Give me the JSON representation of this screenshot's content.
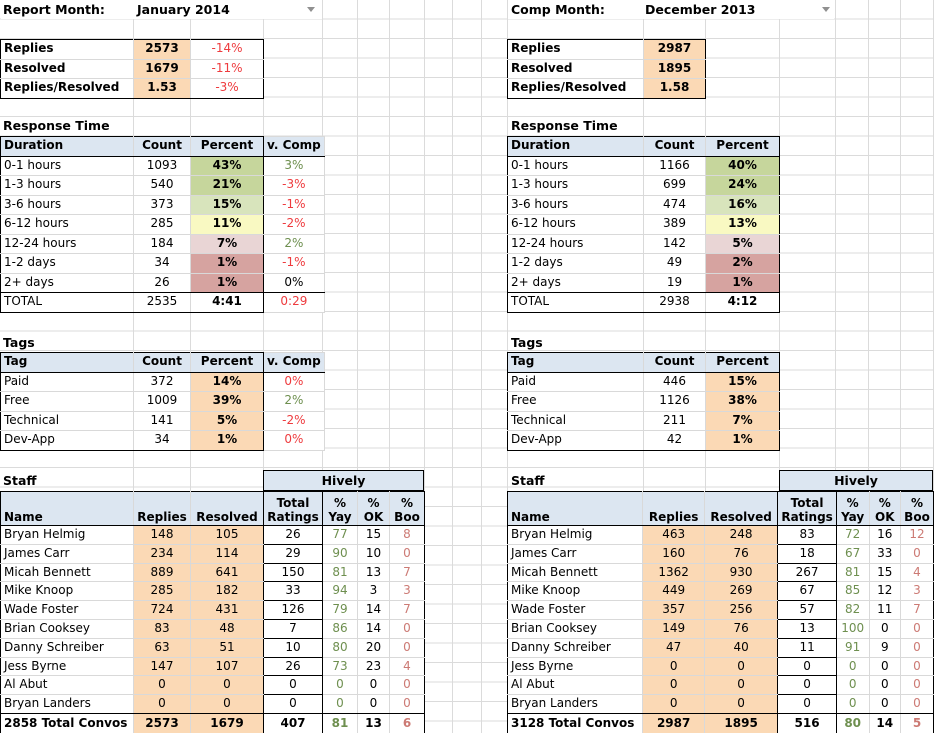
{
  "colors": {
    "header_fill": "#DCE6F1",
    "orange_fill": "#FBD9B5",
    "green_fill": "#C6D69C",
    "green_fill_light": "#D8E4BC",
    "yellow_fill": "#F9F9C2",
    "pink_fill_light": "#E9D5D5",
    "pink_fill_dark": "#D6A3A0",
    "positive_text": "#6E8F4F",
    "negative_text": "#EE3B3E",
    "boo_text": "#CC7A74"
  },
  "left": {
    "month": {
      "label": "Report Month:",
      "value": "January 2014"
    },
    "summary": [
      {
        "label": "Replies",
        "value": "2573",
        "comp": "-14%"
      },
      {
        "label": "Resolved",
        "value": "1679",
        "comp": "-11%"
      },
      {
        "label": "Replies/Resolved",
        "value": "1.53",
        "comp": "-3%"
      }
    ],
    "response": {
      "title": "Response Time",
      "headers": [
        "Duration",
        "Count",
        "Percent",
        "v. Comp"
      ],
      "rows": [
        {
          "label": "0-1 hours",
          "count": "1093",
          "percent": "43%",
          "fill": "g1",
          "comp": "3%",
          "comp_cls": "pos"
        },
        {
          "label": "1-3 hours",
          "count": "540",
          "percent": "21%",
          "fill": "g1",
          "comp": "-3%",
          "comp_cls": "neg"
        },
        {
          "label": "3-6 hours",
          "count": "373",
          "percent": "15%",
          "fill": "g2",
          "comp": "-1%",
          "comp_cls": "neg"
        },
        {
          "label": "6-12 hours",
          "count": "285",
          "percent": "11%",
          "fill": "y",
          "comp": "-2%",
          "comp_cls": "neg"
        },
        {
          "label": "12-24 hours",
          "count": "184",
          "percent": "7%",
          "fill": "p1",
          "comp": "2%",
          "comp_cls": "pos"
        },
        {
          "label": "1-2 days",
          "count": "34",
          "percent": "1%",
          "fill": "p2",
          "comp": "-1%",
          "comp_cls": "neg"
        },
        {
          "label": "2+ days",
          "count": "26",
          "percent": "1%",
          "fill": "p2",
          "comp": "0%",
          "comp_cls": "zero"
        }
      ],
      "total": {
        "label": "TOTAL",
        "count": "2535",
        "percent": "4:41",
        "comp": "0:29"
      }
    },
    "tags": {
      "title": "Tags",
      "headers": [
        "Tag",
        "Count",
        "Percent",
        "v. Comp"
      ],
      "rows": [
        {
          "label": "Paid",
          "count": "372",
          "percent": "14%",
          "fill": "or",
          "comp": "0%",
          "comp_cls": "neg"
        },
        {
          "label": "Free",
          "count": "1009",
          "percent": "39%",
          "fill": "or",
          "comp": "2%",
          "comp_cls": "pos"
        },
        {
          "label": "Technical",
          "count": "141",
          "percent": "5%",
          "fill": "or",
          "comp": "-2%",
          "comp_cls": "neg"
        },
        {
          "label": "Dev-App",
          "count": "34",
          "percent": "1%",
          "fill": "or",
          "comp": "0%",
          "comp_cls": "neg"
        }
      ]
    },
    "staff": {
      "title": "Staff",
      "group_header": "Hively",
      "headers": [
        "Name",
        "Replies",
        "Resolved",
        "Total Ratings",
        "% Yay",
        "% OK",
        "% Boo"
      ],
      "rows": [
        {
          "name": "Bryan Helmig",
          "replies": "148",
          "resolved": "105",
          "ratings": "26",
          "yay": "77",
          "ok": "15",
          "boo": "8"
        },
        {
          "name": "James Carr",
          "replies": "234",
          "resolved": "114",
          "ratings": "29",
          "yay": "90",
          "ok": "10",
          "boo": "0"
        },
        {
          "name": "Micah Bennett",
          "replies": "889",
          "resolved": "641",
          "ratings": "150",
          "yay": "81",
          "ok": "13",
          "boo": "7"
        },
        {
          "name": "Mike Knoop",
          "replies": "285",
          "resolved": "182",
          "ratings": "33",
          "yay": "94",
          "ok": "3",
          "boo": "3"
        },
        {
          "name": "Wade Foster",
          "replies": "724",
          "resolved": "431",
          "ratings": "126",
          "yay": "79",
          "ok": "14",
          "boo": "7"
        },
        {
          "name": "Brian Cooksey",
          "replies": "83",
          "resolved": "48",
          "ratings": "7",
          "yay": "86",
          "ok": "14",
          "boo": "0"
        },
        {
          "name": "Danny Schreiber",
          "replies": "63",
          "resolved": "51",
          "ratings": "10",
          "yay": "80",
          "ok": "20",
          "boo": "0"
        },
        {
          "name": "Jess Byrne",
          "replies": "147",
          "resolved": "107",
          "ratings": "26",
          "yay": "73",
          "ok": "23",
          "boo": "4"
        },
        {
          "name": "Al Abut",
          "replies": "0",
          "resolved": "0",
          "ratings": "0",
          "yay": "0",
          "ok": "0",
          "boo": "0"
        },
        {
          "name": "Bryan Landers",
          "replies": "0",
          "resolved": "0",
          "ratings": "0",
          "yay": "0",
          "ok": "0",
          "boo": "0"
        }
      ],
      "total": {
        "name": "2858 Total Convos",
        "replies": "2573",
        "resolved": "1679",
        "ratings": "407",
        "yay": "81",
        "ok": "13",
        "boo": "6"
      }
    }
  },
  "right": {
    "month": {
      "label": "Comp Month:",
      "value": "December 2013"
    },
    "summary": [
      {
        "label": "Replies",
        "value": "2987"
      },
      {
        "label": "Resolved",
        "value": "1895"
      },
      {
        "label": "Replies/Resolved",
        "value": "1.58"
      }
    ],
    "response": {
      "title": "Response Time",
      "headers": [
        "Duration",
        "Count",
        "Percent"
      ],
      "rows": [
        {
          "label": "0-1 hours",
          "count": "1166",
          "percent": "40%",
          "fill": "g1"
        },
        {
          "label": "1-3 hours",
          "count": "699",
          "percent": "24%",
          "fill": "g1"
        },
        {
          "label": "3-6 hours",
          "count": "474",
          "percent": "16%",
          "fill": "g2"
        },
        {
          "label": "6-12 hours",
          "count": "389",
          "percent": "13%",
          "fill": "y"
        },
        {
          "label": "12-24 hours",
          "count": "142",
          "percent": "5%",
          "fill": "p1"
        },
        {
          "label": "1-2 days",
          "count": "49",
          "percent": "2%",
          "fill": "p2"
        },
        {
          "label": "2+ days",
          "count": "19",
          "percent": "1%",
          "fill": "p2"
        }
      ],
      "total": {
        "label": "TOTAL",
        "count": "2938",
        "percent": "4:12"
      }
    },
    "tags": {
      "title": "Tags",
      "headers": [
        "Tag",
        "Count",
        "Percent"
      ],
      "rows": [
        {
          "label": "Paid",
          "count": "446",
          "percent": "15%",
          "fill": "or"
        },
        {
          "label": "Free",
          "count": "1126",
          "percent": "38%",
          "fill": "or"
        },
        {
          "label": "Technical",
          "count": "211",
          "percent": "7%",
          "fill": "or"
        },
        {
          "label": "Dev-App",
          "count": "42",
          "percent": "1%",
          "fill": "or"
        }
      ]
    },
    "staff": {
      "title": "Staff",
      "group_header": "Hively",
      "headers": [
        "Name",
        "Replies",
        "Resolved",
        "Total Ratings",
        "% Yay",
        "% OK",
        "% Boo"
      ],
      "rows": [
        {
          "name": "Bryan Helmig",
          "replies": "463",
          "resolved": "248",
          "ratings": "83",
          "yay": "72",
          "ok": "16",
          "boo": "12"
        },
        {
          "name": "James Carr",
          "replies": "160",
          "resolved": "76",
          "ratings": "18",
          "yay": "67",
          "ok": "33",
          "boo": "0"
        },
        {
          "name": "Micah Bennett",
          "replies": "1362",
          "resolved": "930",
          "ratings": "267",
          "yay": "81",
          "ok": "15",
          "boo": "4"
        },
        {
          "name": "Mike Knoop",
          "replies": "449",
          "resolved": "269",
          "ratings": "67",
          "yay": "85",
          "ok": "12",
          "boo": "3"
        },
        {
          "name": "Wade Foster",
          "replies": "357",
          "resolved": "256",
          "ratings": "57",
          "yay": "82",
          "ok": "11",
          "boo": "7"
        },
        {
          "name": "Brian Cooksey",
          "replies": "149",
          "resolved": "76",
          "ratings": "13",
          "yay": "100",
          "ok": "0",
          "boo": "0"
        },
        {
          "name": "Danny Schreiber",
          "replies": "47",
          "resolved": "40",
          "ratings": "11",
          "yay": "91",
          "ok": "9",
          "boo": "0"
        },
        {
          "name": "Jess Byrne",
          "replies": "0",
          "resolved": "0",
          "ratings": "0",
          "yay": "0",
          "ok": "0",
          "boo": "0"
        },
        {
          "name": "Al Abut",
          "replies": "0",
          "resolved": "0",
          "ratings": "0",
          "yay": "0",
          "ok": "0",
          "boo": "0"
        },
        {
          "name": "Bryan Landers",
          "replies": "0",
          "resolved": "0",
          "ratings": "0",
          "yay": "0",
          "ok": "0",
          "boo": "0"
        }
      ],
      "total": {
        "name": "3128 Total Convos",
        "replies": "2987",
        "resolved": "1895",
        "ratings": "516",
        "yay": "80",
        "ok": "14",
        "boo": "5"
      }
    }
  }
}
